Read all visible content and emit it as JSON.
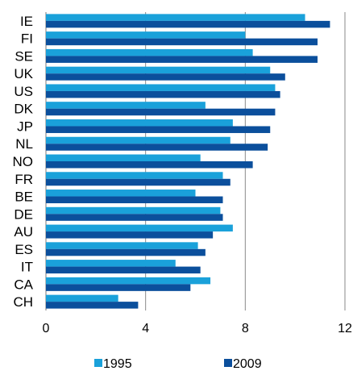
{
  "chart_data": {
    "type": "bar",
    "orientation": "horizontal",
    "categories": [
      "IE",
      "FI",
      "SE",
      "UK",
      "US",
      "DK",
      "JP",
      "NL",
      "NO",
      "FR",
      "BE",
      "DE",
      "AU",
      "ES",
      "IT",
      "CA",
      "CH"
    ],
    "series": [
      {
        "name": "1995",
        "color": "#1AA1DA",
        "values": [
          10.4,
          8.0,
          8.3,
          9.0,
          9.2,
          6.4,
          7.5,
          7.4,
          6.2,
          7.1,
          6.0,
          7.0,
          7.5,
          6.1,
          5.2,
          6.6,
          2.9
        ]
      },
      {
        "name": "2009",
        "color": "#0B4F9C",
        "values": [
          11.4,
          10.9,
          10.9,
          9.6,
          9.4,
          9.2,
          9.0,
          8.9,
          8.3,
          7.4,
          7.1,
          7.1,
          6.7,
          6.4,
          6.2,
          5.8,
          3.7
        ]
      }
    ],
    "xlim": [
      0,
      12
    ],
    "xticks": [
      0,
      4,
      8,
      12
    ],
    "grid": "vertical",
    "legend": "bottom"
  }
}
